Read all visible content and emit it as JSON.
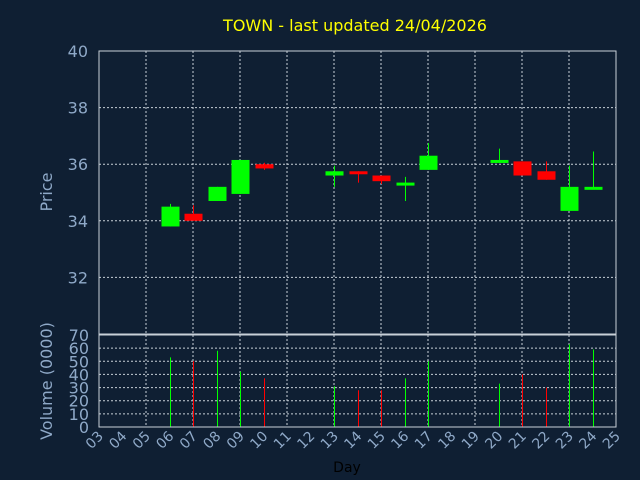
{
  "chart_data": {
    "type": "candlestick",
    "title": "TOWN - last updated 24/04/2026",
    "ylabel": "Price",
    "volume_ylabel": "Volume (0000)",
    "xlabel": "Day",
    "ylim": [
      30,
      40
    ],
    "yticks": [
      32,
      34,
      36,
      38,
      40
    ],
    "volume_ylim": [
      0,
      70
    ],
    "volume_yticks": [
      0,
      10,
      20,
      30,
      40,
      50,
      60,
      70
    ],
    "x_range": [
      3,
      25
    ],
    "x_ticks": [
      "03",
      "04",
      "05",
      "06",
      "07",
      "08",
      "09",
      "10",
      "11",
      "12",
      "13",
      "14",
      "15",
      "16",
      "17",
      "18",
      "19",
      "20",
      "21",
      "22",
      "23",
      "24",
      "25"
    ],
    "colors": {
      "up": "#00ff00",
      "down": "#ff0000"
    },
    "candles": [
      {
        "day": 6,
        "open": 33.8,
        "high": 34.6,
        "low": 33.8,
        "close": 34.5,
        "volume": 53
      },
      {
        "day": 7,
        "open": 34.25,
        "high": 34.55,
        "low": 34.0,
        "close": 34.0,
        "volume": 50
      },
      {
        "day": 8,
        "open": 34.7,
        "high": 35.2,
        "low": 34.7,
        "close": 35.2,
        "volume": 58
      },
      {
        "day": 9,
        "open": 34.95,
        "high": 36.15,
        "low": 34.95,
        "close": 36.15,
        "volume": 42
      },
      {
        "day": 10,
        "open": 36.0,
        "high": 36.05,
        "low": 35.8,
        "close": 35.85,
        "volume": 37
      },
      {
        "day": 13,
        "open": 35.6,
        "high": 35.95,
        "low": 35.2,
        "close": 35.75,
        "volume": 31
      },
      {
        "day": 14,
        "open": 35.75,
        "high": 35.75,
        "low": 35.35,
        "close": 35.65,
        "volume": 28
      },
      {
        "day": 15,
        "open": 35.6,
        "high": 35.6,
        "low": 35.3,
        "close": 35.4,
        "volume": 28
      },
      {
        "day": 16,
        "open": 35.25,
        "high": 35.55,
        "low": 34.7,
        "close": 35.35,
        "volume": 37
      },
      {
        "day": 17,
        "open": 35.8,
        "high": 36.75,
        "low": 35.8,
        "close": 36.3,
        "volume": 50
      },
      {
        "day": 20,
        "open": 36.05,
        "high": 36.55,
        "low": 36.05,
        "close": 36.15,
        "volume": 33
      },
      {
        "day": 21,
        "open": 36.1,
        "high": 36.1,
        "low": 35.6,
        "close": 35.6,
        "volume": 40
      },
      {
        "day": 22,
        "open": 35.75,
        "high": 36.1,
        "low": 35.45,
        "close": 35.45,
        "volume": 30
      },
      {
        "day": 23,
        "open": 34.35,
        "high": 35.95,
        "low": 34.35,
        "close": 35.2,
        "volume": 63
      },
      {
        "day": 24,
        "open": 35.15,
        "high": 36.45,
        "low": 35.15,
        "close": 35.2,
        "volume": 59
      }
    ]
  }
}
